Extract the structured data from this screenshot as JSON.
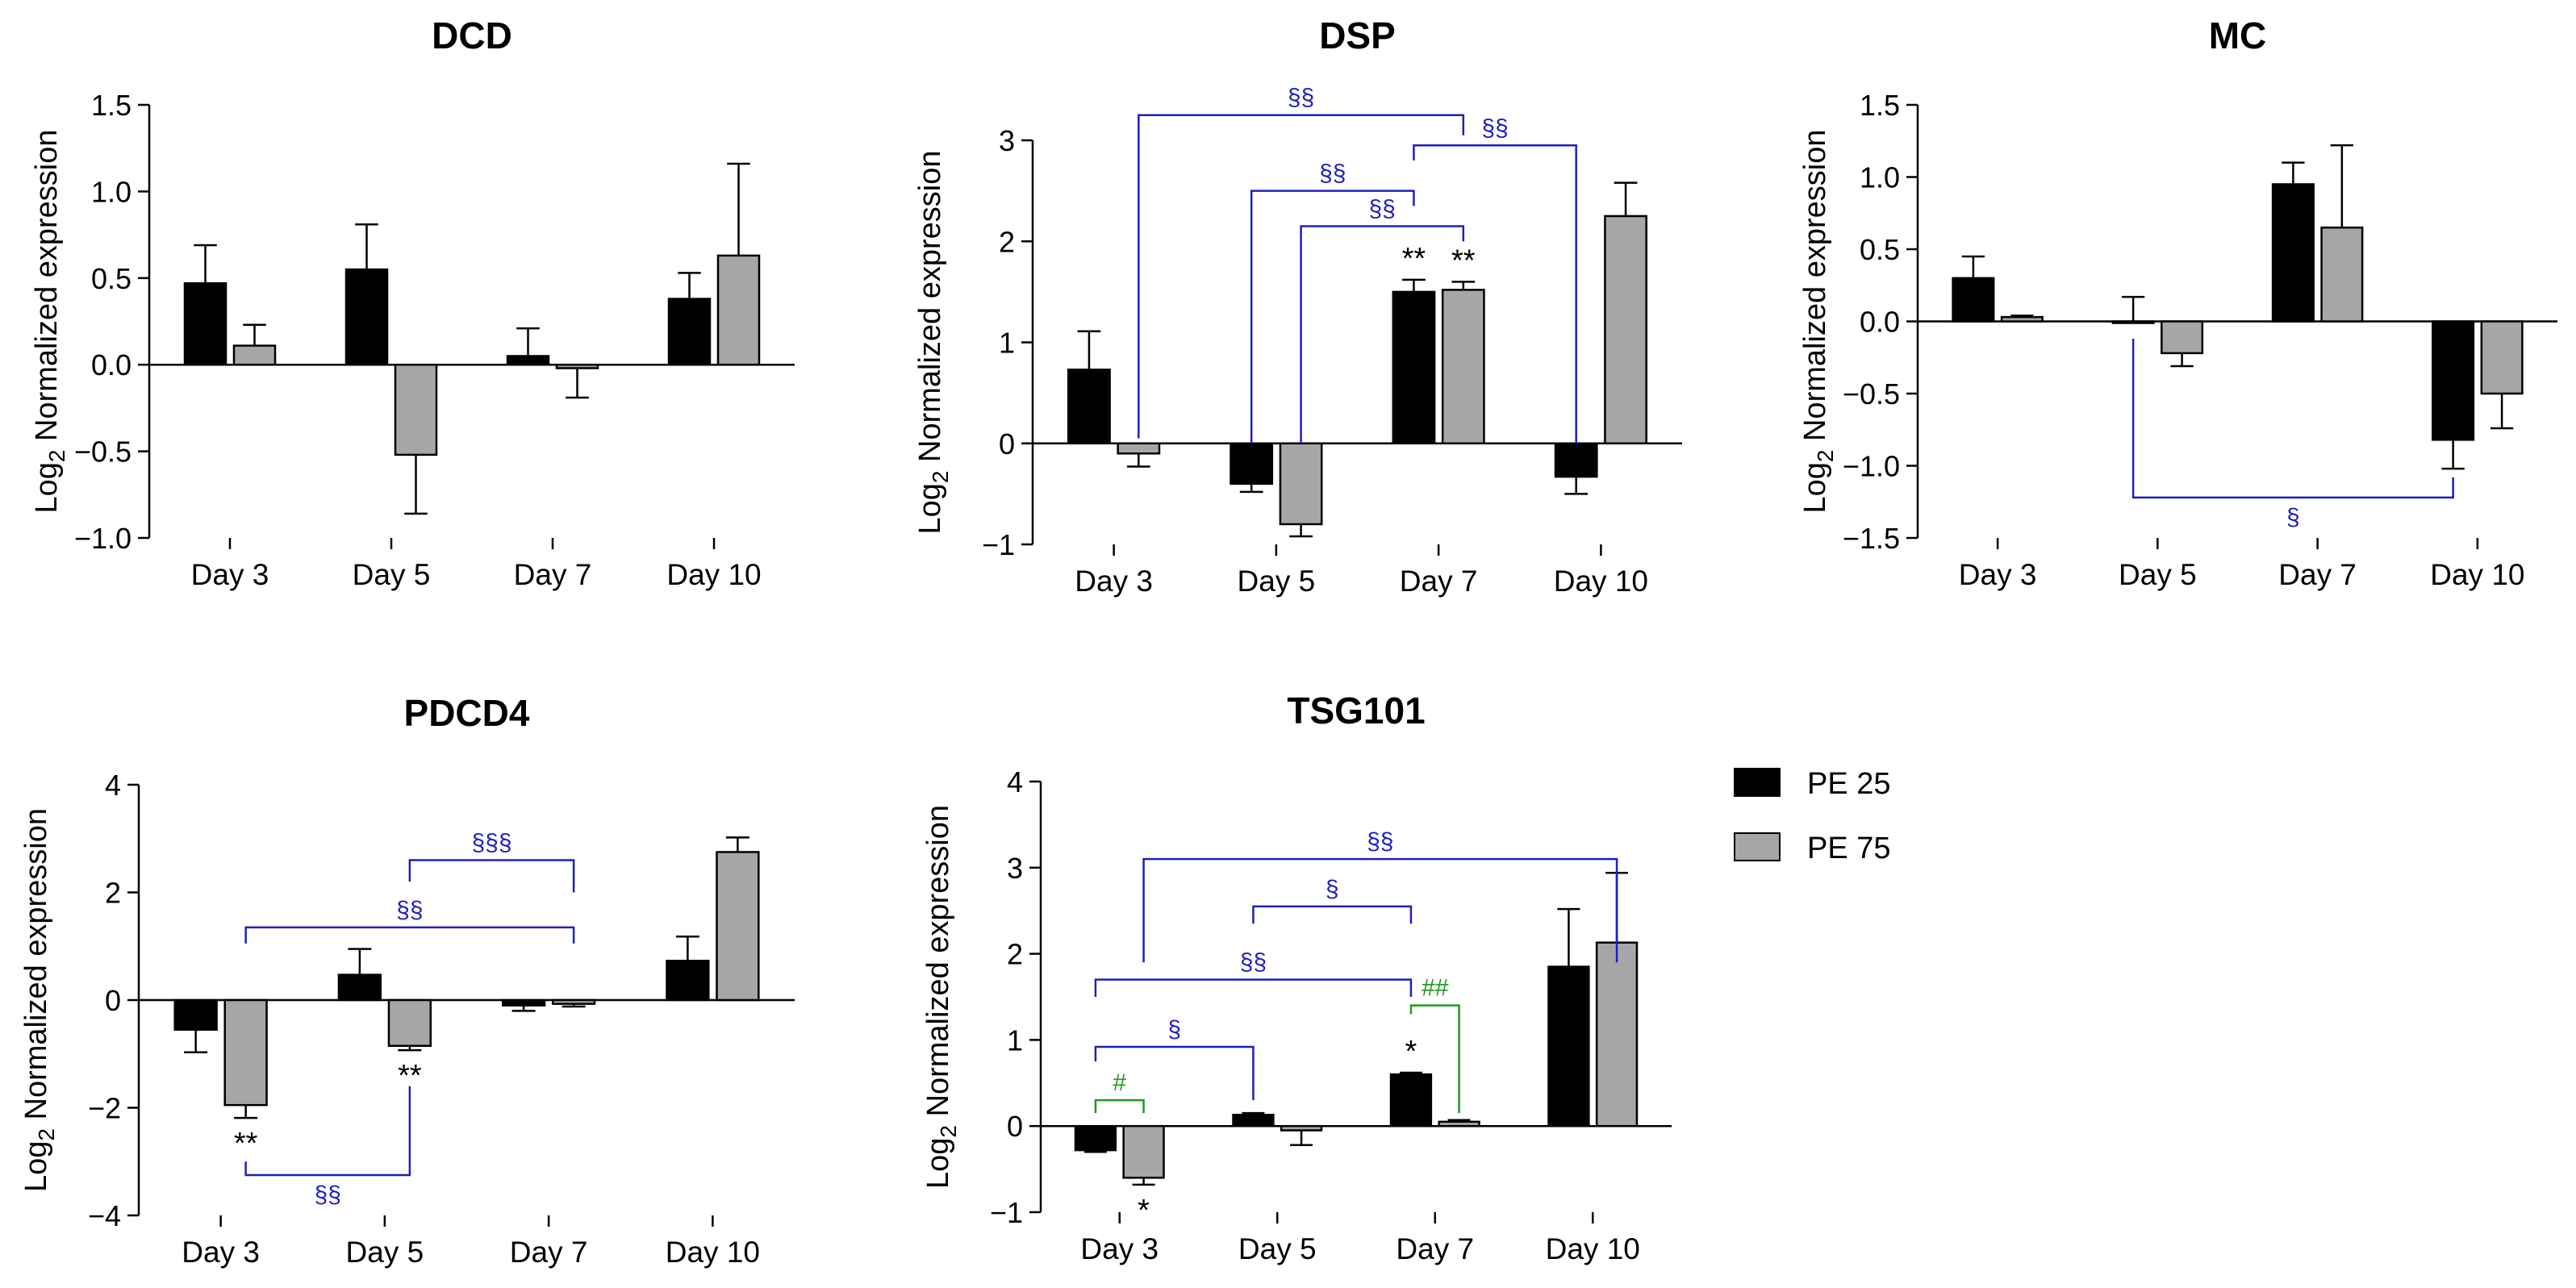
{
  "legend": {
    "placement": "right",
    "entries": [
      {
        "label": "PE 25",
        "color": "#000000"
      },
      {
        "label": "PE 75",
        "color": "#a6a6a8"
      }
    ]
  },
  "colors": {
    "pe25": "#000000",
    "pe75": "#a6a6a8",
    "axis": "#000000",
    "blue": "#1f1fbf",
    "green": "#1f9a1f"
  },
  "chart_data": [
    {
      "id": "dcd",
      "type": "bar",
      "title": "DCD",
      "ylabel_main": "Log",
      "ylabel_sub": "2",
      "ylabel_rest": " Normalized expression",
      "ylim": [
        -1.0,
        1.5
      ],
      "yticks": [
        {
          "v": 1.5,
          "label": "1.5"
        },
        {
          "v": 1.0,
          "label": "1.0"
        },
        {
          "v": 0.5,
          "label": "0.5"
        },
        {
          "v": 0.0,
          "label": "0.0"
        },
        {
          "v": -0.5,
          "label": "−0.5"
        },
        {
          "v": -1.0,
          "label": "−1.0"
        }
      ],
      "categories": [
        "Day 3",
        "Day 5",
        "Day 7",
        "Day 10"
      ],
      "series": [
        {
          "name": "PE 25",
          "values": [
            0.47,
            0.55,
            0.05,
            0.38
          ],
          "errors": [
            0.22,
            0.26,
            0.16,
            0.15
          ]
        },
        {
          "name": "PE 75",
          "values": [
            0.11,
            -0.52,
            -0.02,
            0.63
          ],
          "errors": [
            0.12,
            0.34,
            0.17,
            0.53
          ]
        }
      ],
      "stars": [],
      "brackets": []
    },
    {
      "id": "dsp",
      "type": "bar",
      "title": "DSP",
      "ylabel_main": "Log",
      "ylabel_sub": "2",
      "ylabel_rest": " Normalized expression",
      "ylim": [
        -1,
        3
      ],
      "yticks": [
        {
          "v": 3,
          "label": "3"
        },
        {
          "v": 2,
          "label": "2"
        },
        {
          "v": 1,
          "label": "1"
        },
        {
          "v": 0,
          "label": "0"
        },
        {
          "v": -1,
          "label": "−1"
        }
      ],
      "categories": [
        "Day 3",
        "Day 5",
        "Day 7",
        "Day 10"
      ],
      "series": [
        {
          "name": "PE 25",
          "values": [
            0.73,
            -0.4,
            1.5,
            -0.33
          ],
          "errors": [
            0.38,
            0.08,
            0.12,
            0.17
          ]
        },
        {
          "name": "PE 75",
          "values": [
            -0.1,
            -0.8,
            1.52,
            2.25
          ],
          "errors": [
            0.13,
            0.12,
            0.08,
            0.33
          ]
        }
      ],
      "stars": [
        {
          "cat": 2,
          "ser": 0,
          "text": "**",
          "pos": "above"
        },
        {
          "cat": 2,
          "ser": 1,
          "text": "**",
          "pos": "above"
        }
      ],
      "brackets": [
        {
          "a": [
            0,
            1
          ],
          "b": [
            2,
            1
          ],
          "y": 3.25,
          "ya": 0.05,
          "yb": 3.05,
          "label": "§§",
          "lx": [
            1,
            0
          ],
          "color": "blue"
        },
        {
          "a": [
            1,
            0
          ],
          "b": [
            2,
            0
          ],
          "y": 2.5,
          "ya": 0.0,
          "yb": 2.35,
          "label": "§§",
          "lx": [
            1,
            1
          ],
          "color": "blue"
        },
        {
          "a": [
            1,
            1
          ],
          "b": [
            2,
            1
          ],
          "y": 2.15,
          "ya": 0.0,
          "yb": 2.0,
          "label": "§§",
          "lx": [
            2,
            0
          ],
          "color": "blue"
        },
        {
          "a": [
            2,
            0
          ],
          "b": [
            3,
            0
          ],
          "y": 2.95,
          "ya": 2.8,
          "yb": 0.0,
          "label": "§§",
          "lx": [
            2,
            1
          ],
          "color": "blue"
        }
      ]
    },
    {
      "id": "mc",
      "type": "bar",
      "title": "MC",
      "ylabel_main": "Log",
      "ylabel_sub": "2",
      "ylabel_rest": " Normalized expression",
      "ylim": [
        -1.5,
        1.5
      ],
      "yticks": [
        {
          "v": 1.5,
          "label": "1.5"
        },
        {
          "v": 1.0,
          "label": "1.0"
        },
        {
          "v": 0.5,
          "label": "0.5"
        },
        {
          "v": 0.0,
          "label": "0.0"
        },
        {
          "v": -0.5,
          "label": "−0.5"
        },
        {
          "v": -1.0,
          "label": "−1.0"
        },
        {
          "v": -1.5,
          "label": "−1.5"
        }
      ],
      "categories": [
        "Day 3",
        "Day 5",
        "Day 7",
        "Day 10"
      ],
      "series": [
        {
          "name": "PE 25",
          "values": [
            0.3,
            0.0,
            0.95,
            -0.82
          ],
          "errors": [
            0.15,
            0.17,
            0.15,
            0.2
          ]
        },
        {
          "name": "PE 75",
          "values": [
            0.03,
            -0.22,
            0.65,
            -0.5
          ],
          "errors": [
            0.01,
            0.09,
            0.57,
            0.24
          ]
        }
      ],
      "stars": [],
      "brackets": [
        {
          "a": [
            1,
            0
          ],
          "b": [
            3,
            0
          ],
          "y": -1.22,
          "ya": -0.12,
          "yb": -1.08,
          "label": "§",
          "lx": [
            2,
            0.5
          ],
          "color": "blue",
          "labelPos": "below"
        }
      ]
    },
    {
      "id": "pdcd4",
      "type": "bar",
      "title": "PDCD4",
      "ylabel_main": "Log",
      "ylabel_sub": "2",
      "ylabel_rest": " Normalized expression",
      "ylim": [
        -4,
        4
      ],
      "yticks": [
        {
          "v": 4,
          "label": "4"
        },
        {
          "v": 2,
          "label": "2"
        },
        {
          "v": 0,
          "label": "0"
        },
        {
          "v": -2,
          "label": "−2"
        },
        {
          "v": -4,
          "label": "−4"
        }
      ],
      "categories": [
        "Day 3",
        "Day 5",
        "Day 7",
        "Day 10"
      ],
      "series": [
        {
          "name": "PE 25",
          "values": [
            -0.55,
            0.47,
            -0.1,
            0.73
          ],
          "errors": [
            0.42,
            0.48,
            0.1,
            0.45
          ]
        },
        {
          "name": "PE 75",
          "values": [
            -1.95,
            -0.85,
            -0.07,
            2.75
          ],
          "errors": [
            0.24,
            0.08,
            0.05,
            0.27
          ]
        }
      ],
      "stars": [
        {
          "cat": 0,
          "ser": 1,
          "text": "**",
          "pos": "below"
        },
        {
          "cat": 1,
          "ser": 1,
          "text": "**",
          "pos": "below"
        }
      ],
      "brackets": [
        {
          "a": [
            1,
            1
          ],
          "b": [
            2,
            1
          ],
          "y": 2.6,
          "ya": 2.2,
          "yb": 2.0,
          "label": "§§§",
          "lx": [
            1.75,
            0
          ],
          "color": "blue"
        },
        {
          "a": [
            0,
            1
          ],
          "b": [
            2,
            1
          ],
          "y": 1.35,
          "ya": 1.05,
          "yb": 1.05,
          "label": "§§",
          "lx": [
            1,
            0.5
          ],
          "color": "blue"
        },
        {
          "a": [
            0,
            1
          ],
          "b": [
            1,
            1
          ],
          "y": -3.25,
          "ya": -3.0,
          "yb": -1.6,
          "label": "§§",
          "lx": [
            0.5,
            1
          ],
          "color": "blue",
          "labelPos": "below"
        }
      ]
    },
    {
      "id": "tsg101",
      "type": "bar",
      "title": "TSG101",
      "ylabel_main": "Log",
      "ylabel_sub": "2",
      "ylabel_rest": " Normalized expression",
      "ylim": [
        -1,
        4
      ],
      "yticks": [
        {
          "v": 4,
          "label": "4"
        },
        {
          "v": 3,
          "label": "3"
        },
        {
          "v": 2,
          "label": "2"
        },
        {
          "v": 1,
          "label": "1"
        },
        {
          "v": 0,
          "label": "0"
        },
        {
          "v": -1,
          "label": "−1"
        }
      ],
      "categories": [
        "Day 3",
        "Day 5",
        "Day 7",
        "Day 10"
      ],
      "series": [
        {
          "name": "PE 25",
          "values": [
            -0.28,
            0.13,
            0.6,
            1.85
          ],
          "errors": [
            0.02,
            0.02,
            0.02,
            0.67
          ]
        },
        {
          "name": "PE 75",
          "values": [
            -0.6,
            -0.05,
            0.05,
            2.13
          ],
          "errors": [
            0.08,
            0.17,
            0.02,
            0.81
          ]
        }
      ],
      "stars": [
        {
          "cat": 0,
          "ser": 1,
          "text": "*",
          "pos": "below"
        },
        {
          "cat": 2,
          "ser": 0,
          "text": "*",
          "pos": "above"
        }
      ],
      "brackets": [
        {
          "a": [
            0,
            1
          ],
          "b": [
            3,
            1
          ],
          "y": 3.1,
          "ya": 1.9,
          "yb": 1.9,
          "label": "§§",
          "lx": [
            1.5,
            1
          ],
          "color": "blue"
        },
        {
          "a": [
            1,
            0
          ],
          "b": [
            2,
            0
          ],
          "y": 2.55,
          "ya": 2.35,
          "yb": 2.35,
          "label": "§",
          "lx": [
            1.5,
            1
          ],
          "color": "blue"
        },
        {
          "a": [
            0,
            0
          ],
          "b": [
            2,
            0
          ],
          "y": 1.7,
          "ya": 1.5,
          "yb": 1.5,
          "label": "§§",
          "lx": [
            1,
            0
          ],
          "color": "blue"
        },
        {
          "a": [
            0,
            0
          ],
          "b": [
            1,
            0
          ],
          "y": 0.92,
          "ya": 0.75,
          "yb": 0.3,
          "label": "§",
          "lx": [
            0.5,
            0.5
          ],
          "color": "blue"
        },
        {
          "a": [
            0,
            0
          ],
          "b": [
            0,
            1
          ],
          "y": 0.3,
          "ya": 0.15,
          "yb": 0.15,
          "label": "#",
          "lx": [
            0,
            0.5
          ],
          "color": "green"
        },
        {
          "a": [
            2,
            0
          ],
          "b": [
            2,
            1
          ],
          "y": 1.4,
          "ya": 1.3,
          "yb": 0.15,
          "label": "##",
          "lx": [
            2,
            0.5
          ],
          "color": "green"
        }
      ]
    }
  ]
}
